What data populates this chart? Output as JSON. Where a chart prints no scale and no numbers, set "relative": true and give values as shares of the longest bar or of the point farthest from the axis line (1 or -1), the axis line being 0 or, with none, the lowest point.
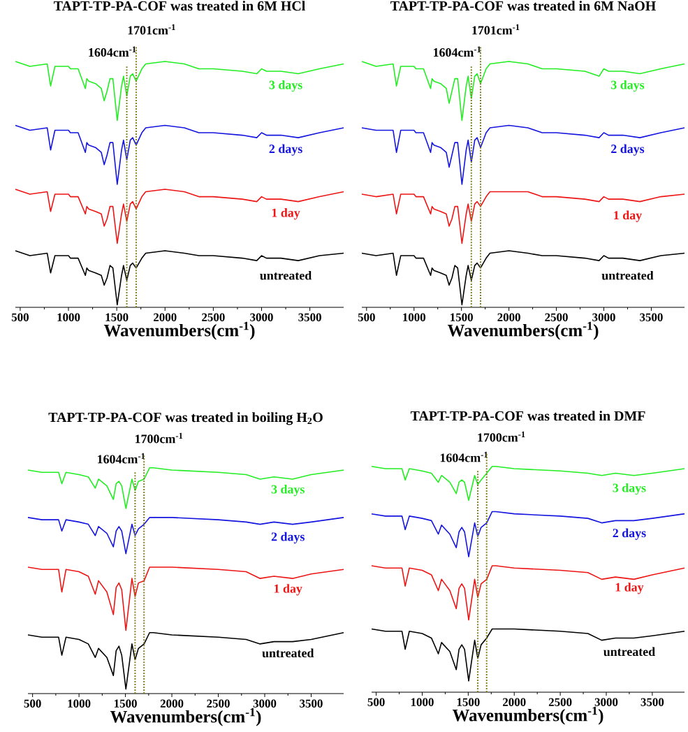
{
  "chart_data": [
    {
      "type": "line",
      "relative": true,
      "title": "TAPT-TP-PA-COF was treated in 6M HCl",
      "xlabel": "Wavenumbers(cm$^{-1}$)",
      "xlim": [
        450,
        3850
      ],
      "xticks": [
        500,
        1000,
        1500,
        2000,
        2500,
        3000,
        3500
      ],
      "x": [
        450,
        600,
        780,
        815,
        860,
        1000,
        1020,
        1100,
        1175,
        1190,
        1210,
        1280,
        1340,
        1370,
        1400,
        1430,
        1460,
        1505,
        1550,
        1570,
        1604,
        1640,
        1665,
        1701,
        1760,
        1800,
        2000,
        2200,
        2350,
        2500,
        2800,
        2950,
        3000,
        3050,
        3200,
        3380,
        3600,
        3850
      ],
      "ref_lines": [
        {
          "axis": "x",
          "value": 1604,
          "label": "1604cm$^{-1}$",
          "color": "#808020",
          "line_style": "dotted"
        },
        {
          "axis": "x",
          "value": 1701,
          "label": "1701cm$^{-1}$",
          "color": "#808020",
          "line_style": "dotted"
        }
      ],
      "series": [
        {
          "name": "3 days",
          "color": "#22ee22",
          "values": [
            1.0,
            0.98,
            0.99,
            0.9,
            0.98,
            0.98,
            0.97,
            0.97,
            0.89,
            0.93,
            0.92,
            0.91,
            0.89,
            0.84,
            0.88,
            0.93,
            0.93,
            0.76,
            0.9,
            0.94,
            0.86,
            0.94,
            0.95,
            0.92,
            0.97,
            0.99,
            1.0,
            0.99,
            0.97,
            0.97,
            0.96,
            0.95,
            0.97,
            0.96,
            0.96,
            0.95,
            0.97,
            0.99
          ]
        },
        {
          "name": "2 days",
          "color": "#1515e0",
          "values": [
            0.74,
            0.72,
            0.73,
            0.64,
            0.72,
            0.72,
            0.71,
            0.71,
            0.63,
            0.67,
            0.66,
            0.65,
            0.63,
            0.58,
            0.62,
            0.67,
            0.67,
            0.5,
            0.64,
            0.68,
            0.6,
            0.68,
            0.69,
            0.66,
            0.71,
            0.73,
            0.74,
            0.73,
            0.71,
            0.71,
            0.7,
            0.69,
            0.71,
            0.7,
            0.7,
            0.69,
            0.71,
            0.73
          ]
        },
        {
          "name": "1 day",
          "color": "#ee1515",
          "values": [
            0.48,
            0.46,
            0.47,
            0.39,
            0.46,
            0.46,
            0.45,
            0.45,
            0.38,
            0.41,
            0.4,
            0.39,
            0.38,
            0.33,
            0.36,
            0.41,
            0.41,
            0.26,
            0.38,
            0.42,
            0.35,
            0.42,
            0.43,
            0.4,
            0.45,
            0.47,
            0.48,
            0.47,
            0.45,
            0.45,
            0.44,
            0.43,
            0.45,
            0.44,
            0.44,
            0.43,
            0.45,
            0.47
          ]
        },
        {
          "name": "untreated",
          "color": "#000000",
          "values": [
            0.23,
            0.21,
            0.22,
            0.14,
            0.21,
            0.21,
            0.2,
            0.2,
            0.13,
            0.16,
            0.15,
            0.14,
            0.13,
            0.09,
            0.12,
            0.17,
            0.16,
            0.01,
            0.13,
            0.17,
            0.11,
            0.17,
            0.18,
            0.16,
            0.2,
            0.22,
            0.23,
            0.22,
            0.21,
            0.21,
            0.2,
            0.19,
            0.21,
            0.2,
            0.2,
            0.19,
            0.21,
            0.22
          ]
        }
      ]
    },
    {
      "type": "line",
      "relative": true,
      "title": "TAPT-TP-PA-COF was treated in 6M NaOH",
      "xlabel": "Wavenumbers(cm$^{-1}$)",
      "xlim": [
        450,
        3850
      ],
      "xticks": [
        500,
        1000,
        1500,
        2000,
        2500,
        3000,
        3500
      ],
      "x": [
        450,
        600,
        780,
        815,
        860,
        1000,
        1020,
        1100,
        1175,
        1190,
        1210,
        1280,
        1340,
        1370,
        1400,
        1430,
        1460,
        1505,
        1550,
        1570,
        1604,
        1640,
        1665,
        1701,
        1760,
        1800,
        2000,
        2200,
        2350,
        2500,
        2800,
        2950,
        3000,
        3050,
        3200,
        3380,
        3600,
        3850
      ],
      "ref_lines": [
        {
          "axis": "x",
          "value": 1604,
          "label": "1604cm$^{-1}$",
          "color": "#808020",
          "line_style": "dotted"
        },
        {
          "axis": "x",
          "value": 1701,
          "label": "1701cm$^{-1}$",
          "color": "#808020",
          "line_style": "dotted"
        }
      ],
      "series": [
        {
          "name": "3 days",
          "color": "#22ee22",
          "values": [
            1.0,
            0.98,
            0.99,
            0.9,
            0.98,
            0.98,
            0.97,
            0.97,
            0.89,
            0.93,
            0.92,
            0.91,
            0.89,
            0.83,
            0.88,
            0.93,
            0.93,
            0.76,
            0.9,
            0.94,
            0.85,
            0.94,
            0.95,
            0.91,
            0.97,
            0.99,
            1.0,
            0.99,
            0.97,
            0.97,
            0.96,
            0.94,
            0.97,
            0.96,
            0.96,
            0.95,
            0.97,
            0.99
          ]
        },
        {
          "name": "2 days",
          "color": "#1515e0",
          "values": [
            0.73,
            0.72,
            0.72,
            0.63,
            0.72,
            0.72,
            0.71,
            0.71,
            0.63,
            0.67,
            0.66,
            0.65,
            0.63,
            0.57,
            0.62,
            0.67,
            0.67,
            0.5,
            0.64,
            0.68,
            0.59,
            0.68,
            0.69,
            0.65,
            0.71,
            0.73,
            0.74,
            0.73,
            0.71,
            0.71,
            0.7,
            0.69,
            0.71,
            0.7,
            0.7,
            0.69,
            0.71,
            0.73
          ]
        },
        {
          "name": "1 day",
          "color": "#ee1515",
          "values": [
            0.46,
            0.45,
            0.46,
            0.38,
            0.46,
            0.46,
            0.45,
            0.45,
            0.38,
            0.41,
            0.4,
            0.39,
            0.38,
            0.33,
            0.36,
            0.41,
            0.41,
            0.26,
            0.38,
            0.42,
            0.35,
            0.42,
            0.43,
            0.41,
            0.45,
            0.47,
            0.47,
            0.47,
            0.45,
            0.45,
            0.44,
            0.43,
            0.45,
            0.44,
            0.44,
            0.43,
            0.45,
            0.46
          ]
        },
        {
          "name": "untreated",
          "color": "#000000",
          "values": [
            0.22,
            0.21,
            0.22,
            0.13,
            0.21,
            0.21,
            0.2,
            0.2,
            0.13,
            0.16,
            0.15,
            0.14,
            0.13,
            0.09,
            0.12,
            0.17,
            0.16,
            0.01,
            0.13,
            0.17,
            0.11,
            0.17,
            0.18,
            0.16,
            0.2,
            0.22,
            0.23,
            0.22,
            0.21,
            0.21,
            0.2,
            0.19,
            0.21,
            0.2,
            0.2,
            0.19,
            0.21,
            0.22
          ]
        }
      ]
    },
    {
      "type": "line",
      "relative": true,
      "title": "TAPT-TP-PA-COF was treated in boiling H$_{2}$O",
      "xlabel": "Wavenumbers(cm$^{-1}$)",
      "xlim": [
        450,
        3850
      ],
      "xticks": [
        500,
        1000,
        1500,
        2000,
        2500,
        3000,
        3500
      ],
      "x": [
        450,
        600,
        780,
        815,
        860,
        1000,
        1100,
        1175,
        1210,
        1300,
        1370,
        1400,
        1430,
        1460,
        1505,
        1570,
        1604,
        1640,
        1701,
        1760,
        1800,
        2000,
        2500,
        2800,
        2950,
        3100,
        3300,
        3500,
        3850
      ],
      "ref_lines": [
        {
          "axis": "x",
          "value": 1604,
          "label": "1604cm$^{-1}$",
          "color": "#808020",
          "line_style": "dotted"
        },
        {
          "axis": "x",
          "value": 1700,
          "label": "1700cm$^{-1}$",
          "color": "#808020",
          "line_style": "dotted"
        }
      ],
      "series": [
        {
          "name": "3 days",
          "color": "#22ee22",
          "values": [
            0.99,
            0.98,
            0.98,
            0.93,
            0.98,
            0.97,
            0.96,
            0.91,
            0.95,
            0.92,
            0.86,
            0.93,
            0.94,
            0.92,
            0.82,
            0.95,
            0.9,
            0.94,
            0.95,
            1.0,
            1.0,
            0.99,
            0.98,
            0.97,
            0.95,
            0.96,
            0.95,
            0.97,
            0.99
          ]
        },
        {
          "name": "2 days",
          "color": "#1515e0",
          "values": [
            0.78,
            0.77,
            0.77,
            0.72,
            0.77,
            0.76,
            0.75,
            0.7,
            0.74,
            0.71,
            0.65,
            0.72,
            0.74,
            0.72,
            0.62,
            0.75,
            0.7,
            0.73,
            0.75,
            0.78,
            0.78,
            0.78,
            0.77,
            0.76,
            0.75,
            0.76,
            0.75,
            0.76,
            0.78
          ]
        },
        {
          "name": "1 day",
          "color": "#ee1515",
          "values": [
            0.56,
            0.55,
            0.55,
            0.45,
            0.55,
            0.54,
            0.52,
            0.44,
            0.5,
            0.45,
            0.35,
            0.47,
            0.49,
            0.46,
            0.28,
            0.51,
            0.43,
            0.49,
            0.5,
            0.56,
            0.56,
            0.56,
            0.55,
            0.54,
            0.51,
            0.52,
            0.51,
            0.53,
            0.55
          ]
        },
        {
          "name": "untreated",
          "color": "#000000",
          "values": [
            0.26,
            0.25,
            0.25,
            0.17,
            0.25,
            0.24,
            0.22,
            0.16,
            0.2,
            0.16,
            0.08,
            0.19,
            0.21,
            0.17,
            0.02,
            0.22,
            0.15,
            0.2,
            0.22,
            0.27,
            0.27,
            0.26,
            0.25,
            0.24,
            0.22,
            0.23,
            0.23,
            0.24,
            0.27
          ]
        }
      ]
    },
    {
      "type": "line",
      "relative": true,
      "title": "TAPT-TP-PA-COF was treated in DMF",
      "xlabel": "Wavenumbers(cm$^{-1}$)",
      "xlim": [
        450,
        3850
      ],
      "xticks": [
        500,
        1000,
        1500,
        2000,
        2500,
        3000,
        3500
      ],
      "x": [
        450,
        600,
        780,
        815,
        860,
        1000,
        1100,
        1175,
        1210,
        1300,
        1370,
        1400,
        1430,
        1460,
        1505,
        1570,
        1604,
        1640,
        1701,
        1760,
        1800,
        2000,
        2500,
        2800,
        2950,
        3100,
        3300,
        3500,
        3850
      ],
      "ref_lines": [
        {
          "axis": "x",
          "value": 1604,
          "label": "1604cm$^{-1}$",
          "color": "#808020",
          "line_style": "dotted"
        },
        {
          "axis": "x",
          "value": 1700,
          "label": "1700cm$^{-1}$",
          "color": "#808020",
          "line_style": "dotted"
        }
      ],
      "series": [
        {
          "name": "3 days",
          "color": "#22ee22",
          "values": [
            1.0,
            0.99,
            0.99,
            0.94,
            0.99,
            0.98,
            0.97,
            0.93,
            0.96,
            0.93,
            0.88,
            0.93,
            0.94,
            0.93,
            0.85,
            0.96,
            0.92,
            0.94,
            0.97,
            1.0,
            1.0,
            0.99,
            0.98,
            0.97,
            0.96,
            0.97,
            0.96,
            0.97,
            0.99
          ]
        },
        {
          "name": "2 days",
          "color": "#1515e0",
          "values": [
            0.79,
            0.78,
            0.78,
            0.72,
            0.78,
            0.77,
            0.76,
            0.7,
            0.74,
            0.7,
            0.64,
            0.71,
            0.73,
            0.71,
            0.6,
            0.75,
            0.69,
            0.73,
            0.75,
            0.8,
            0.8,
            0.79,
            0.78,
            0.77,
            0.75,
            0.76,
            0.76,
            0.77,
            0.79
          ]
        },
        {
          "name": "1 day",
          "color": "#ee1515",
          "values": [
            0.56,
            0.55,
            0.55,
            0.47,
            0.55,
            0.54,
            0.52,
            0.45,
            0.5,
            0.45,
            0.37,
            0.46,
            0.48,
            0.46,
            0.32,
            0.5,
            0.42,
            0.48,
            0.5,
            0.56,
            0.56,
            0.55,
            0.54,
            0.53,
            0.5,
            0.51,
            0.5,
            0.52,
            0.55
          ]
        },
        {
          "name": "untreated",
          "color": "#000000",
          "values": [
            0.28,
            0.27,
            0.27,
            0.19,
            0.27,
            0.26,
            0.24,
            0.17,
            0.22,
            0.18,
            0.1,
            0.19,
            0.21,
            0.19,
            0.05,
            0.23,
            0.15,
            0.21,
            0.24,
            0.28,
            0.28,
            0.28,
            0.27,
            0.26,
            0.23,
            0.24,
            0.24,
            0.25,
            0.27
          ]
        }
      ]
    }
  ]
}
